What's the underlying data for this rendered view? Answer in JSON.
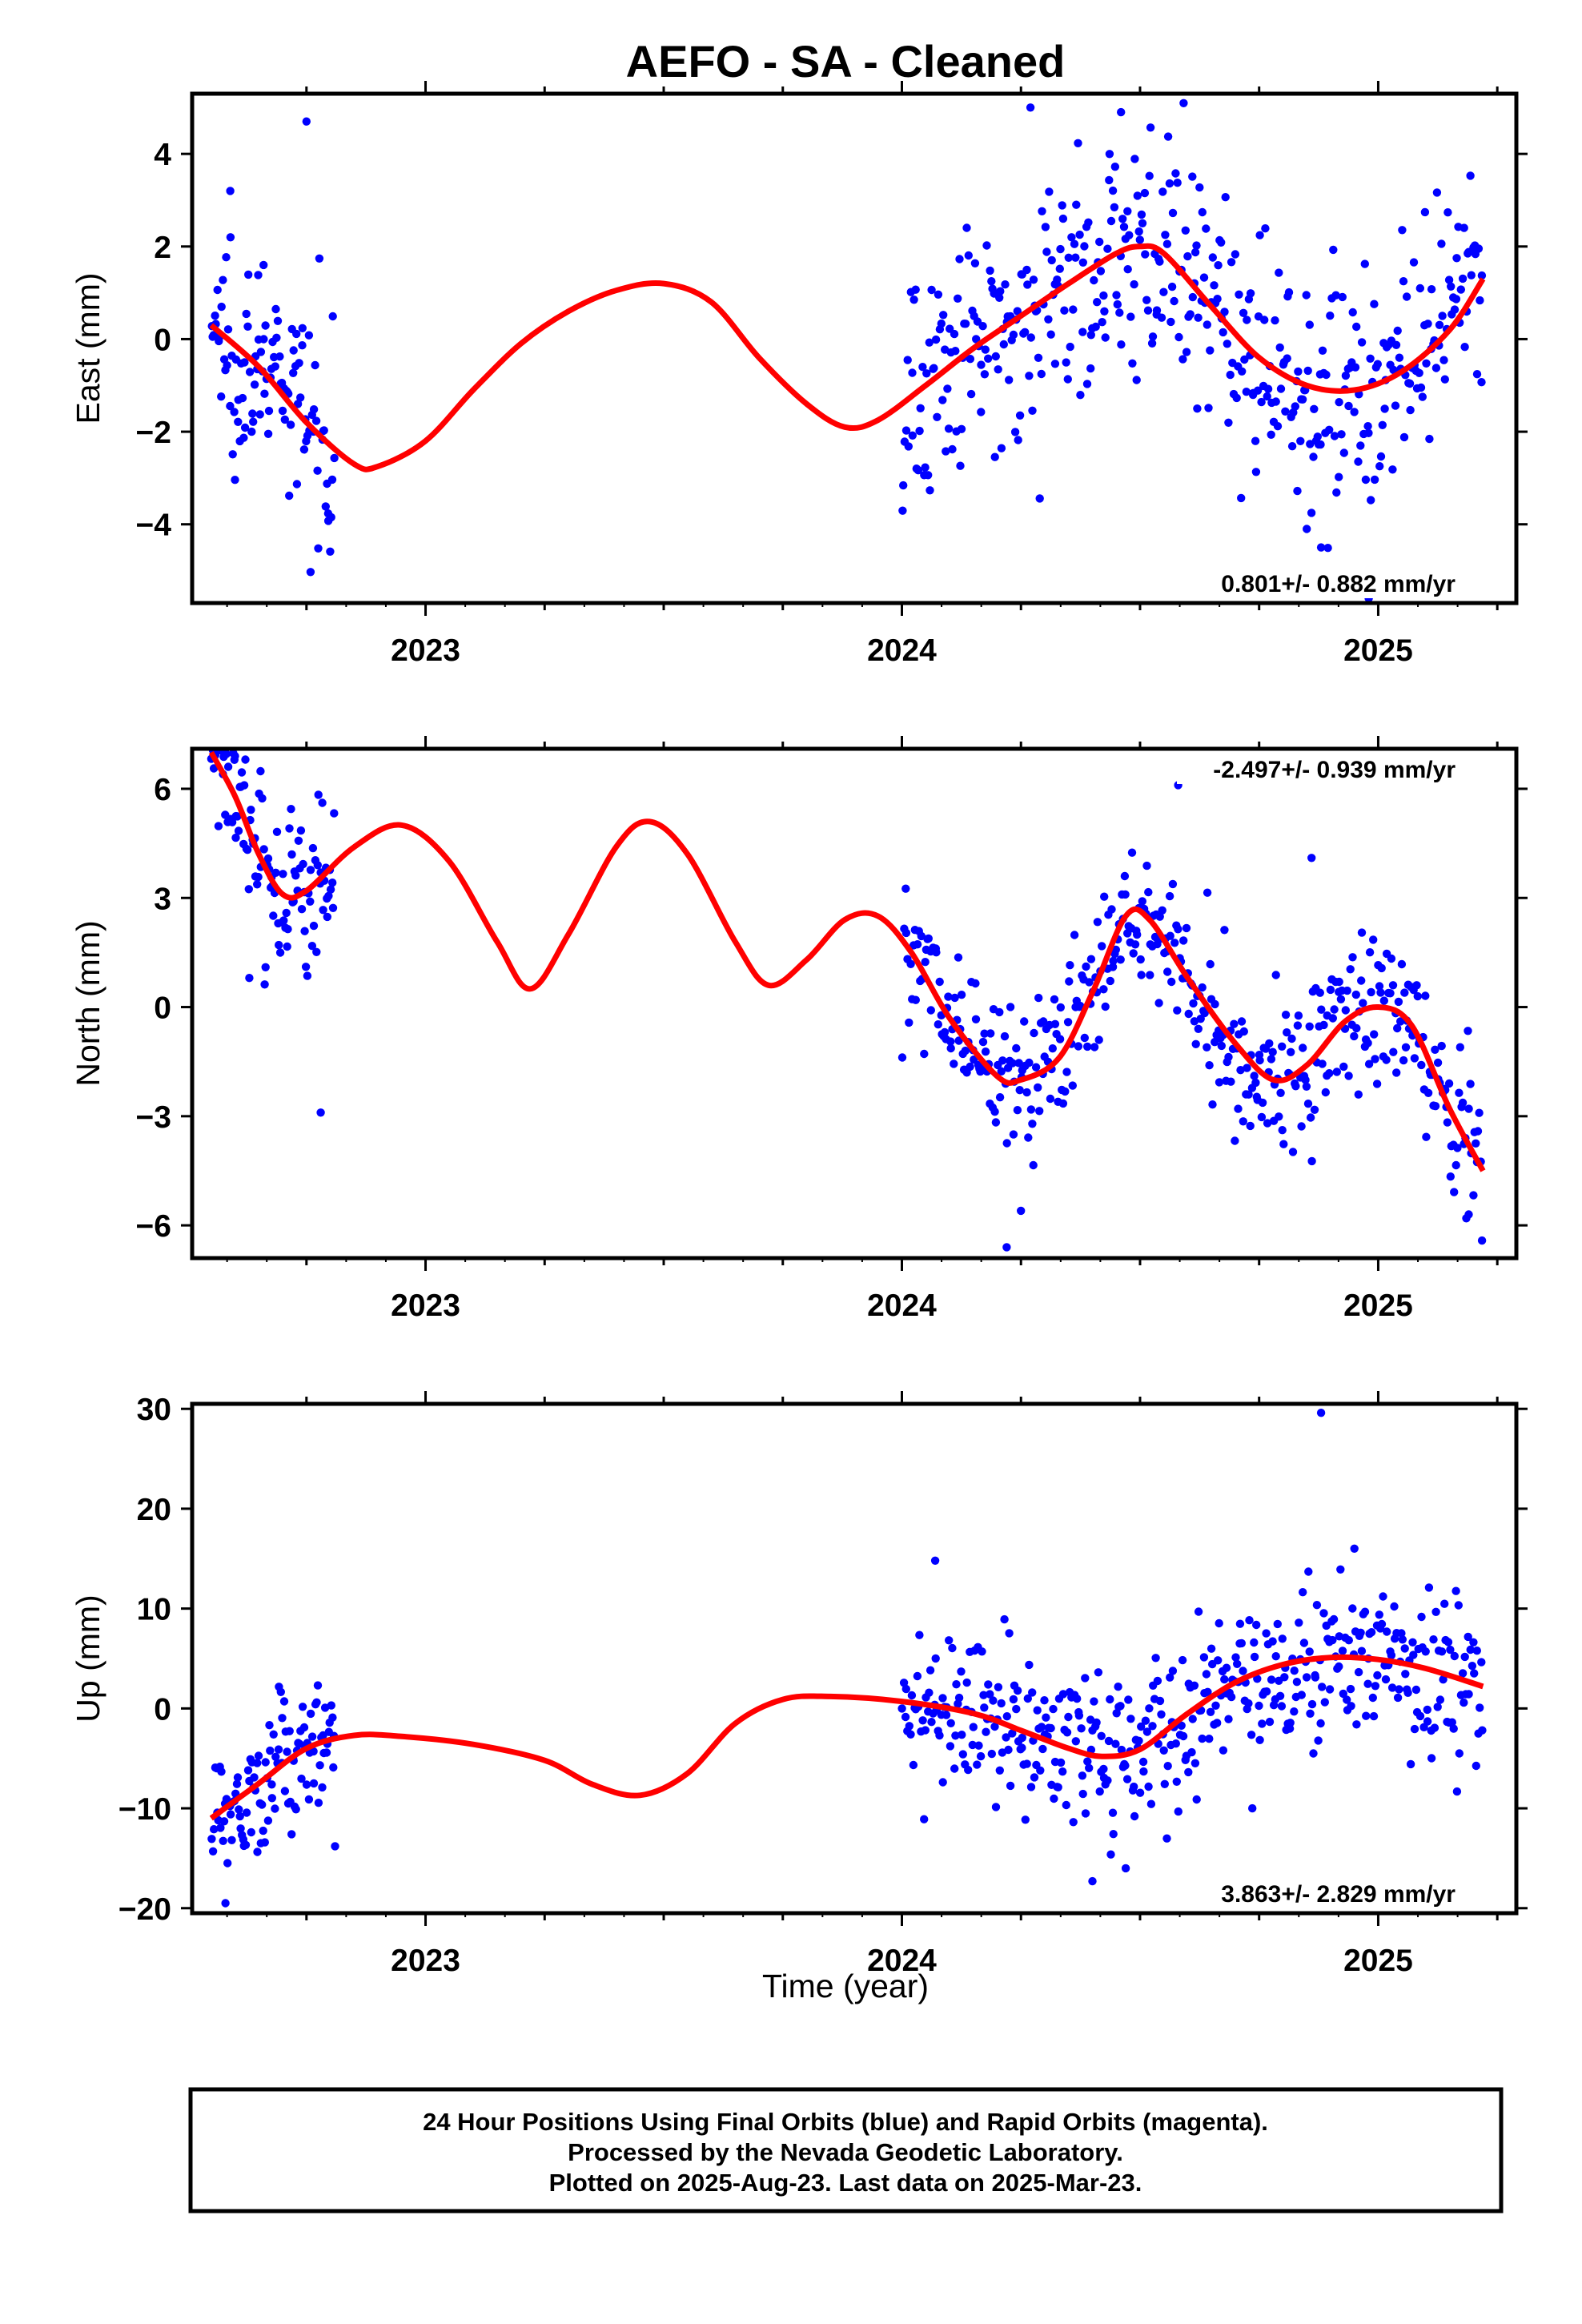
{
  "title": "AEFO  - SA - Cleaned",
  "xlabel": "Time (year)",
  "footer": {
    "line1": "24 Hour Positions Using Final Orbits (blue) and Rapid Orbits (magenta).",
    "line2": "Processed by the Nevada Geodetic Laboratory.",
    "line3": "Plotted on 2025-Aug-23. Last data on 2025-Mar-23."
  },
  "colors": {
    "data": "#0000ff",
    "model": "#ff0000",
    "frame": "#000000"
  },
  "chart_data": [
    {
      "type": "scatter",
      "ylabel": "East (mm)",
      "rate": "0.801+/- 0.882 mm/yr",
      "xlim": [
        2022.51,
        2025.29
      ],
      "ylim": [
        -5.7,
        5.3
      ],
      "xticks": [
        2023,
        2024,
        2025
      ],
      "yticks": [
        -4,
        -2,
        0,
        2,
        4
      ],
      "yticklabels": [
        "−4",
        "−2",
        "0",
        "2",
        "4"
      ],
      "segments": [
        {
          "t0": 2022.55,
          "t1": 2022.81,
          "n": 110,
          "spread": 1.15
        },
        {
          "t0": 2024.0,
          "t1": 2025.22,
          "n": 440,
          "spread": 1.25
        }
      ],
      "outliers": [
        [
          2022.75,
          4.7
        ],
        [
          2022.66,
          1.6
        ],
        [
          2022.59,
          3.2
        ],
        [
          2024.27,
          5.0
        ],
        [
          2024.46,
          4.9
        ],
        [
          2024.85,
          -4.1
        ],
        [
          2024.88,
          -4.5
        ],
        [
          2024.62,
          -1.5
        ],
        [
          2024.98,
          -5.6
        ]
      ],
      "model": [
        [
          2022.55,
          0.3
        ],
        [
          2022.65,
          -0.6
        ],
        [
          2022.75,
          -1.8
        ],
        [
          2022.85,
          -2.7
        ],
        [
          2022.9,
          -2.75
        ],
        [
          2023.0,
          -2.2
        ],
        [
          2023.1,
          -1.1
        ],
        [
          2023.2,
          -0.1
        ],
        [
          2023.3,
          0.6
        ],
        [
          2023.4,
          1.05
        ],
        [
          2023.5,
          1.2
        ],
        [
          2023.6,
          0.8
        ],
        [
          2023.7,
          -0.4
        ],
        [
          2023.8,
          -1.4
        ],
        [
          2023.88,
          -1.9
        ],
        [
          2023.95,
          -1.75
        ],
        [
          2024.05,
          -1.0
        ],
        [
          2024.15,
          -0.2
        ],
        [
          2024.25,
          0.5
        ],
        [
          2024.35,
          1.2
        ],
        [
          2024.45,
          1.85
        ],
        [
          2024.5,
          2.0
        ],
        [
          2024.55,
          1.85
        ],
        [
          2024.65,
          0.7
        ],
        [
          2024.75,
          -0.4
        ],
        [
          2024.85,
          -1.0
        ],
        [
          2024.95,
          -1.1
        ],
        [
          2025.05,
          -0.7
        ],
        [
          2025.15,
          0.2
        ],
        [
          2025.22,
          1.3
        ]
      ]
    },
    {
      "type": "scatter",
      "ylabel": "North (mm)",
      "rate": "-2.497+/- 0.939 mm/yr",
      "xlim": [
        2022.51,
        2025.29
      ],
      "ylim": [
        -6.9,
        7.1
      ],
      "xticks": [
        2023,
        2024,
        2025
      ],
      "yticks": [
        -6,
        -3,
        0,
        3,
        6
      ],
      "yticklabels": [
        "−6",
        "−3",
        "0",
        "3",
        "6"
      ],
      "segments": [
        {
          "t0": 2022.55,
          "t1": 2022.81,
          "n": 110,
          "spread": 1.1
        },
        {
          "t0": 2024.0,
          "t1": 2025.22,
          "n": 440,
          "spread": 1.15
        }
      ],
      "outliers": [
        [
          2022.6,
          6.9
        ],
        [
          2022.63,
          0.8
        ],
        [
          2022.78,
          -2.9
        ],
        [
          2024.25,
          -5.6
        ],
        [
          2024.22,
          -6.6
        ],
        [
          2024.58,
          6.1
        ],
        [
          2024.86,
          4.1
        ],
        [
          2025.19,
          -5.7
        ]
      ],
      "model": [
        [
          2022.55,
          7.0
        ],
        [
          2022.6,
          5.8
        ],
        [
          2022.65,
          4.2
        ],
        [
          2022.7,
          3.1
        ],
        [
          2022.75,
          3.2
        ],
        [
          2022.85,
          4.4
        ],
        [
          2022.95,
          5.0
        ],
        [
          2023.05,
          4.0
        ],
        [
          2023.15,
          1.8
        ],
        [
          2023.22,
          0.5
        ],
        [
          2023.3,
          2.0
        ],
        [
          2023.4,
          4.4
        ],
        [
          2023.47,
          5.1
        ],
        [
          2023.55,
          4.2
        ],
        [
          2023.65,
          1.8
        ],
        [
          2023.72,
          0.6
        ],
        [
          2023.8,
          1.3
        ],
        [
          2023.88,
          2.4
        ],
        [
          2023.95,
          2.5
        ],
        [
          2024.02,
          1.5
        ],
        [
          2024.1,
          -0.3
        ],
        [
          2024.2,
          -1.9
        ],
        [
          2024.25,
          -2.0
        ],
        [
          2024.33,
          -1.4
        ],
        [
          2024.4,
          0.4
        ],
        [
          2024.47,
          2.5
        ],
        [
          2024.52,
          2.4
        ],
        [
          2024.6,
          0.8
        ],
        [
          2024.7,
          -1.0
        ],
        [
          2024.78,
          -2.0
        ],
        [
          2024.85,
          -1.6
        ],
        [
          2024.93,
          -0.4
        ],
        [
          2025.0,
          0.0
        ],
        [
          2025.07,
          -0.5
        ],
        [
          2025.15,
          -2.8
        ],
        [
          2025.22,
          -4.5
        ]
      ]
    },
    {
      "type": "scatter",
      "ylabel": "Up (mm)",
      "rate": "3.863+/- 2.829 mm/yr",
      "xlim": [
        2022.51,
        2025.29
      ],
      "ylim": [
        -20.5,
        30.5
      ],
      "xticks": [
        2023,
        2024,
        2025
      ],
      "yticks": [
        -20,
        -10,
        0,
        10,
        20,
        30
      ],
      "yticklabels": [
        "−20",
        "−10",
        "0",
        "10",
        "20",
        "30"
      ],
      "segments": [
        {
          "t0": 2022.55,
          "t1": 2022.81,
          "n": 110,
          "spread": 3.4
        },
        {
          "t0": 2024.0,
          "t1": 2025.22,
          "n": 440,
          "spread": 4.0
        }
      ],
      "outliers": [
        [
          2022.58,
          -19.5
        ],
        [
          2022.81,
          -13.8
        ],
        [
          2024.4,
          -17.3
        ],
        [
          2024.47,
          -16.0
        ],
        [
          2024.88,
          29.6
        ],
        [
          2024.95,
          16.0
        ],
        [
          2024.07,
          14.8
        ]
      ],
      "model": [
        [
          2022.55,
          -11.0
        ],
        [
          2022.65,
          -7.5
        ],
        [
          2022.75,
          -4.0
        ],
        [
          2022.85,
          -2.7
        ],
        [
          2022.95,
          -2.8
        ],
        [
          2023.1,
          -3.6
        ],
        [
          2023.25,
          -5.2
        ],
        [
          2023.35,
          -7.6
        ],
        [
          2023.45,
          -8.7
        ],
        [
          2023.55,
          -6.5
        ],
        [
          2023.65,
          -1.5
        ],
        [
          2023.75,
          0.9
        ],
        [
          2023.85,
          1.2
        ],
        [
          2024.0,
          0.7
        ],
        [
          2024.15,
          -0.5
        ],
        [
          2024.25,
          -2.2
        ],
        [
          2024.35,
          -4.0
        ],
        [
          2024.42,
          -4.8
        ],
        [
          2024.5,
          -4.1
        ],
        [
          2024.6,
          -0.5
        ],
        [
          2024.7,
          2.6
        ],
        [
          2024.8,
          4.4
        ],
        [
          2024.9,
          5.1
        ],
        [
          2025.0,
          4.9
        ],
        [
          2025.1,
          4.0
        ],
        [
          2025.22,
          2.2
        ]
      ]
    }
  ]
}
